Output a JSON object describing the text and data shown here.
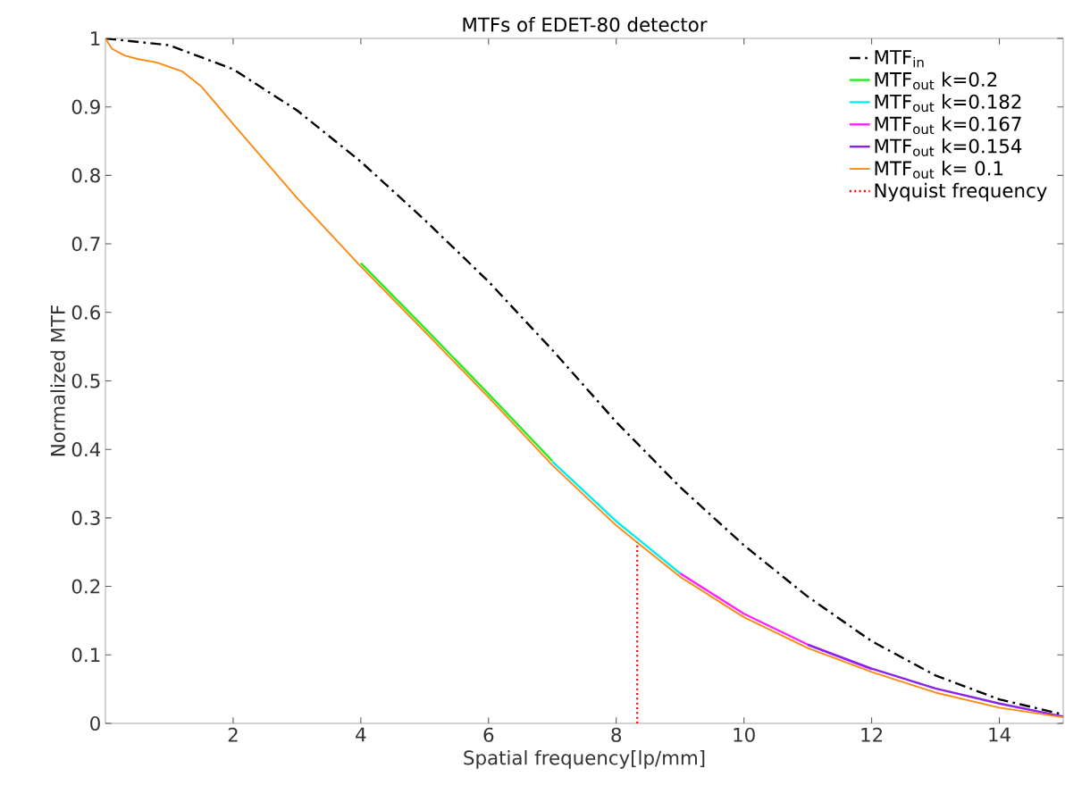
{
  "chart_data": {
    "type": "line",
    "title": "MTFs of EDET-80 detector",
    "xlabel": "Spatial frequency[lp/mm]",
    "ylabel": "Normalized MTF",
    "x": [
      0,
      0.1,
      0.3,
      0.5,
      0.8,
      1.2,
      1.5,
      2,
      3,
      4,
      5,
      6,
      7,
      8,
      8.33,
      9,
      10,
      11,
      12,
      13,
      14,
      15
    ],
    "series": [
      {
        "name": "MTF$_{in}$",
        "color": "#000000",
        "line_style": "dashdot",
        "x": [
          0,
          1,
          2,
          3,
          4,
          5,
          6,
          7,
          8,
          9,
          10,
          11,
          12,
          13,
          14,
          15
        ],
        "values": [
          1.0,
          0.99,
          0.955,
          0.895,
          0.82,
          0.735,
          0.645,
          0.545,
          0.44,
          0.345,
          0.26,
          0.185,
          0.12,
          0.07,
          0.035,
          0.013
        ]
      },
      {
        "name": "MTF$_{out}$  k=0.2",
        "color": "#22ee22",
        "values": [
          null,
          null,
          null,
          null,
          null,
          null,
          null,
          null,
          null,
          0.672,
          0.577,
          0.481,
          0.383,
          null,
          null,
          null,
          null,
          null,
          null,
          null,
          null,
          null
        ]
      },
      {
        "name": "MTF$_{out}$  k=0.182",
        "color": "#00eeee",
        "values": [
          null,
          null,
          null,
          null,
          null,
          null,
          null,
          null,
          null,
          null,
          null,
          null,
          0.382,
          0.295,
          0.27,
          0.219,
          null,
          null,
          null,
          null,
          null,
          null
        ]
      },
      {
        "name": "MTF$_{out}$  k=0.167",
        "color": "#ff22ff",
        "values": [
          null,
          null,
          null,
          null,
          null,
          null,
          null,
          null,
          null,
          null,
          null,
          null,
          null,
          null,
          null,
          0.219,
          0.16,
          0.115,
          0.079,
          null,
          null,
          null
        ]
      },
      {
        "name": "MTF$_{out}$  k=0.154",
        "color": "#8822ee",
        "values": [
          null,
          null,
          null,
          null,
          null,
          null,
          null,
          null,
          null,
          null,
          null,
          null,
          null,
          null,
          null,
          null,
          null,
          0.115,
          0.08,
          0.051,
          0.029,
          0.01
        ]
      },
      {
        "name": "MTF$_{out}$  k= 0.1",
        "color": "#ff8811",
        "values": [
          1.0,
          0.985,
          0.975,
          0.97,
          0.965,
          0.952,
          0.93,
          0.875,
          0.767,
          0.667,
          0.572,
          0.476,
          0.377,
          0.289,
          0.264,
          0.214,
          0.155,
          0.11,
          0.075,
          0.045,
          0.023,
          0.009
        ]
      },
      {
        "name": "Nyquist frequency",
        "color": "#ff0000",
        "line_style": "dotted",
        "x": [
          8.33,
          8.33
        ],
        "values": [
          0,
          0.265
        ]
      }
    ],
    "xlim": [
      0,
      15
    ],
    "ylim": [
      0,
      1
    ],
    "xticks": [
      2,
      4,
      6,
      8,
      10,
      12,
      14
    ],
    "yticks": [
      0,
      0.1,
      0.2,
      0.3,
      0.4,
      0.5,
      0.6,
      0.7,
      0.8,
      0.9,
      1
    ],
    "grid": false,
    "legend": "top right",
    "marker": "none"
  }
}
